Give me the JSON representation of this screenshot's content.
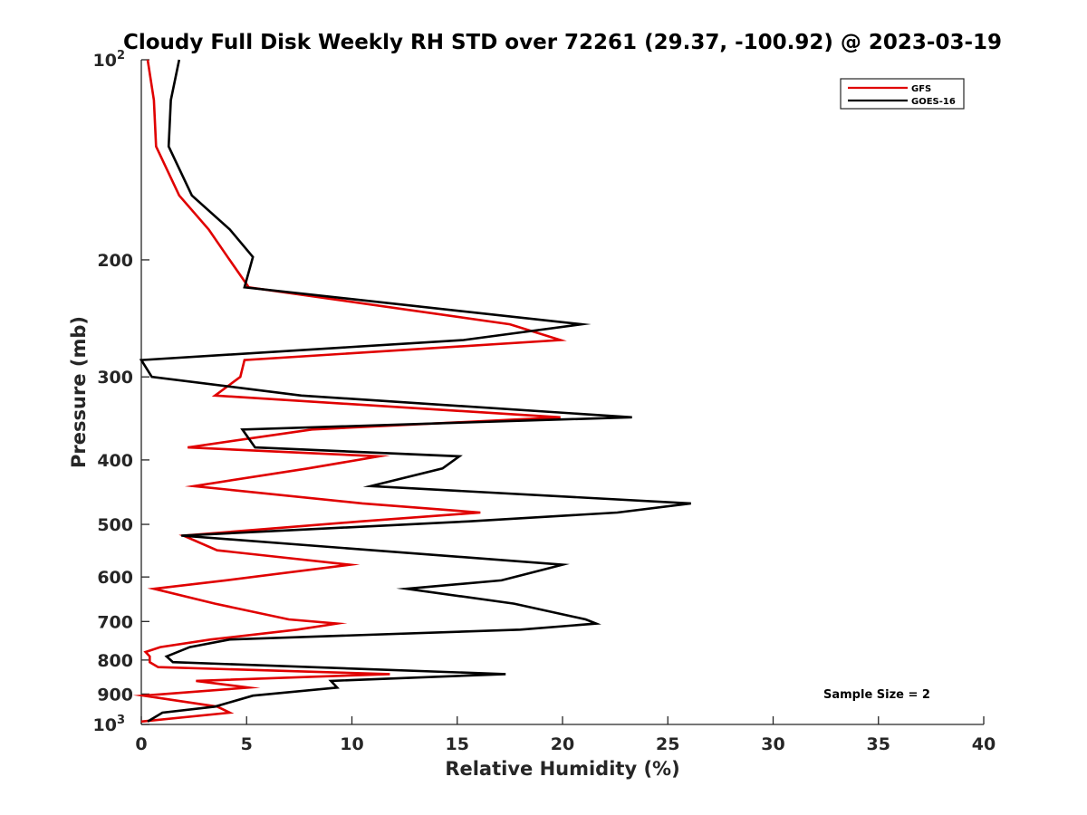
{
  "chart_data": {
    "type": "line",
    "title": "Cloudy Full Disk Weekly RH STD over 72261 (29.37, -100.92) @ 2023-03-19",
    "xlabel": "Relative Humidity (%)",
    "ylabel": "Pressure (mb)",
    "xlim": [
      0,
      40
    ],
    "ylim": [
      100,
      1000
    ],
    "yscale": "log",
    "y_reversed": true,
    "x_ticks": [
      0,
      5,
      10,
      15,
      20,
      25,
      30,
      35,
      40
    ],
    "y_ticks": [
      {
        "value": 100,
        "label": "10",
        "sup": "2"
      },
      {
        "value": 200,
        "label": "200"
      },
      {
        "value": 300,
        "label": "300"
      },
      {
        "value": 400,
        "label": "400"
      },
      {
        "value": 500,
        "label": "500"
      },
      {
        "value": 600,
        "label": "600"
      },
      {
        "value": 700,
        "label": "700"
      },
      {
        "value": 800,
        "label": "800"
      },
      {
        "value": 900,
        "label": "900"
      },
      {
        "value": 1000,
        "label": "10",
        "sup": "3"
      }
    ],
    "grid": false,
    "legend_position": "top-right",
    "annotation": "Sample Size = 2",
    "series": [
      {
        "name": "GFS",
        "color": "#e00000",
        "points": [
          [
            0.3,
            100
          ],
          [
            0.6,
            115
          ],
          [
            0.7,
            135
          ],
          [
            1.8,
            160
          ],
          [
            3.2,
            180
          ],
          [
            4.1,
            198
          ],
          [
            5.1,
            220
          ],
          [
            17.5,
            250
          ],
          [
            19.9,
            264
          ],
          [
            4.9,
            283
          ],
          [
            4.7,
            300
          ],
          [
            3.5,
            320
          ],
          [
            19.9,
            345
          ],
          [
            8.1,
            360
          ],
          [
            2.2,
            383
          ],
          [
            11.3,
            395
          ],
          [
            7.9,
            412
          ],
          [
            2.5,
            438
          ],
          [
            10.5,
            465
          ],
          [
            16.1,
            480
          ],
          [
            10.4,
            495
          ],
          [
            2.0,
            520
          ],
          [
            3.6,
            547
          ],
          [
            9.9,
            575
          ],
          [
            4.0,
            607
          ],
          [
            0.6,
            625
          ],
          [
            3.5,
            658
          ],
          [
            7.0,
            695
          ],
          [
            9.3,
            705
          ],
          [
            7.4,
            720
          ],
          [
            3.3,
            745
          ],
          [
            0.9,
            765
          ],
          [
            0.2,
            778
          ],
          [
            0.4,
            790
          ],
          [
            0.4,
            806
          ],
          [
            0.8,
            820
          ],
          [
            11.8,
            840
          ],
          [
            2.6,
            860
          ],
          [
            5.1,
            880
          ],
          [
            0.1,
            905
          ],
          [
            3.6,
            940
          ],
          [
            4.2,
            960
          ],
          [
            0.0,
            990
          ]
        ]
      },
      {
        "name": "GOES-16",
        "color": "#000000",
        "points": [
          [
            1.8,
            100
          ],
          [
            1.4,
            115
          ],
          [
            1.3,
            135
          ],
          [
            2.4,
            160
          ],
          [
            4.2,
            180
          ],
          [
            5.3,
            198
          ],
          [
            4.9,
            220
          ],
          [
            20.9,
            250
          ],
          [
            15.3,
            264
          ],
          [
            0.0,
            283
          ],
          [
            0.5,
            300
          ],
          [
            7.6,
            320
          ],
          [
            23.3,
            345
          ],
          [
            4.8,
            360
          ],
          [
            5.4,
            383
          ],
          [
            15.1,
            395
          ],
          [
            14.3,
            412
          ],
          [
            10.9,
            438
          ],
          [
            26.1,
            465
          ],
          [
            22.6,
            480
          ],
          [
            15.5,
            495
          ],
          [
            1.9,
            520
          ],
          [
            20.0,
            575
          ],
          [
            17.1,
            607
          ],
          [
            12.6,
            625
          ],
          [
            17.7,
            658
          ],
          [
            21.1,
            695
          ],
          [
            21.6,
            705
          ],
          [
            18.0,
            720
          ],
          [
            4.2,
            745
          ],
          [
            2.3,
            765
          ],
          [
            1.2,
            790
          ],
          [
            1.5,
            806
          ],
          [
            17.3,
            840
          ],
          [
            9.0,
            860
          ],
          [
            9.3,
            880
          ],
          [
            5.3,
            905
          ],
          [
            3.5,
            940
          ],
          [
            1.0,
            960
          ],
          [
            0.3,
            990
          ]
        ]
      }
    ]
  }
}
